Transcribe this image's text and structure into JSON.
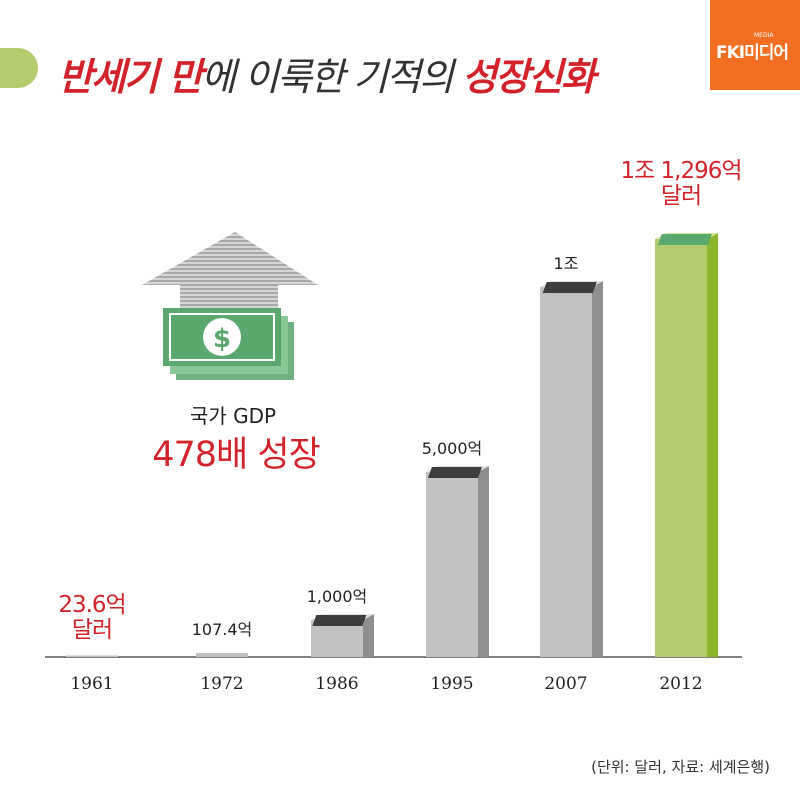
{
  "header": {
    "title_part1": "반세기 만",
    "title_part2": "에 이룩한 기적의 ",
    "title_part3": "성장신화",
    "logo_main": "FKI미디어",
    "logo_sub": "MEDIA"
  },
  "highlight": {
    "label": "국가 GDP",
    "value": "478배 성장"
  },
  "footer": {
    "note": "(단위: 달러, 자료: 세계은행)"
  },
  "colors": {
    "accent_red": "#d2232a",
    "bar_gray": "#c2c2c2",
    "bar_green": "#b5cc6e",
    "logo_orange": "#f26f21"
  },
  "chart_data": {
    "type": "bar",
    "categories": [
      "1961",
      "1972",
      "1986",
      "1995",
      "2007",
      "2012"
    ],
    "values": [
      23.6,
      107.4,
      1000,
      5000,
      10000,
      11296
    ],
    "value_unit": "억 달러",
    "data_labels": [
      {
        "lines": [
          "23.6억",
          "달러"
        ],
        "highlight": true
      },
      {
        "lines": [
          "107.4억"
        ],
        "highlight": false
      },
      {
        "lines": [
          "1,000억"
        ],
        "highlight": false
      },
      {
        "lines": [
          "5,000억"
        ],
        "highlight": false
      },
      {
        "lines": [
          "1조"
        ],
        "highlight": false
      },
      {
        "lines": [
          "1조 1,296억",
          "달러"
        ],
        "highlight": true
      }
    ],
    "highlight_index": 5,
    "grid": false,
    "legend": "none"
  }
}
